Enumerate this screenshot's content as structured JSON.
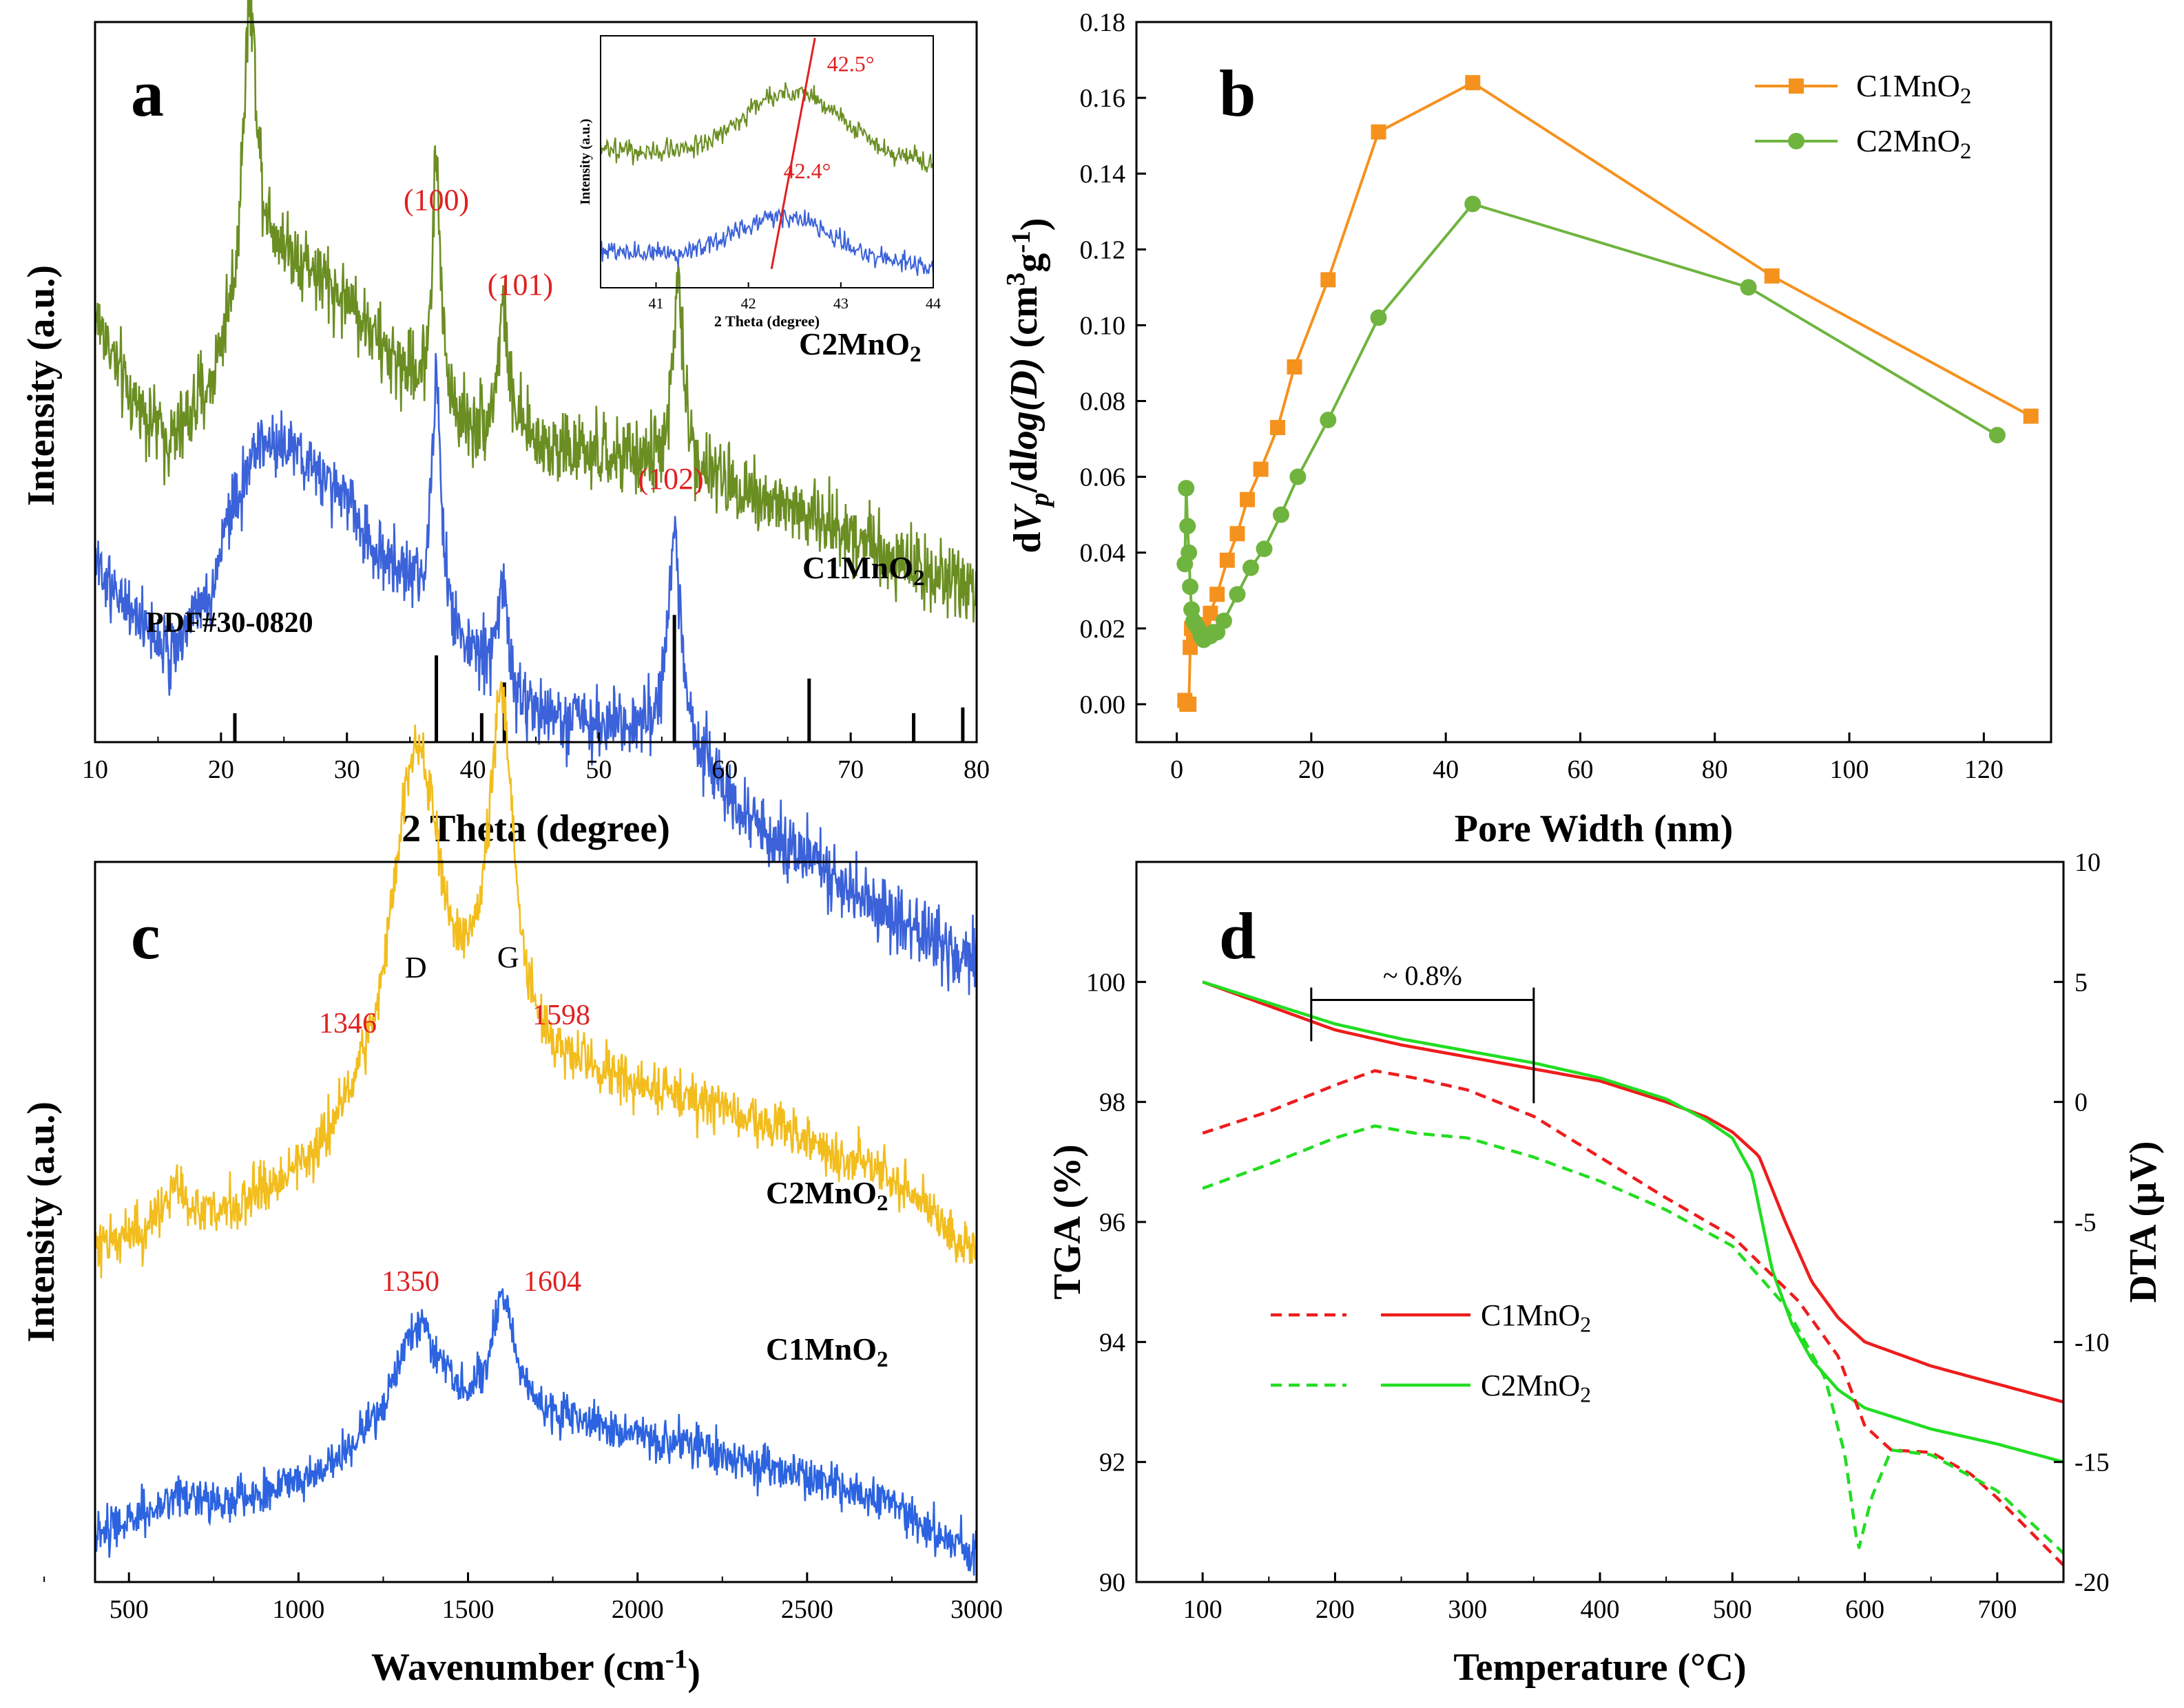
{
  "chart_data": [
    {
      "id": "a",
      "panel_label": "a",
      "type": "line",
      "xlabel": "2 Theta (degree)",
      "ylabel": "Intensity (a.u.)",
      "xlim": [
        10,
        80
      ],
      "xticks": [
        10,
        20,
        30,
        40,
        50,
        60,
        70,
        80
      ],
      "colors": {
        "C2MnO2": "#6b8e23",
        "C1MnO2": "#3b62d9",
        "annotation": "#e02020"
      },
      "series": [
        {
          "name": "C2MnO2",
          "label_main": "C2MnO",
          "label_sub": "2",
          "color": "#6b8e23",
          "offset": 0.82,
          "noise": 0.045,
          "baseline": [
            [
              10,
              0.73
            ],
            [
              13,
              0.63
            ],
            [
              16,
              0.58
            ],
            [
              19,
              0.64
            ],
            [
              21,
              0.74
            ],
            [
              22.3,
              0.92
            ],
            [
              23.5,
              0.83
            ],
            [
              26,
              0.8
            ],
            [
              30,
              0.75
            ],
            [
              34,
              0.67
            ],
            [
              38,
              0.61
            ],
            [
              40,
              0.59
            ],
            [
              44,
              0.58
            ],
            [
              50,
              0.56
            ],
            [
              56,
              0.55
            ],
            [
              60,
              0.53
            ],
            [
              65,
              0.5
            ],
            [
              70,
              0.47
            ],
            [
              75,
              0.43
            ],
            [
              80,
              0.4
            ]
          ],
          "peaks": [
            [
              22.3,
              0.2,
              0.6
            ],
            [
              37.1,
              0.3,
              0.4
            ],
            [
              42.4,
              0.16,
              0.5
            ],
            [
              56.3,
              0.22,
              0.5
            ]
          ]
        },
        {
          "name": "C1MnO2",
          "label_main": "C1MnO",
          "label_sub": "2",
          "color": "#3b62d9",
          "offset": 0.0,
          "noise": 0.04,
          "baseline": [
            [
              10,
              0.72
            ],
            [
              13,
              0.67
            ],
            [
              16,
              0.63
            ],
            [
              19,
              0.69
            ],
            [
              21,
              0.8
            ],
            [
              23,
              0.88
            ],
            [
              26,
              0.87
            ],
            [
              29,
              0.82
            ],
            [
              33,
              0.74
            ],
            [
              37,
              0.68
            ],
            [
              40,
              0.62
            ],
            [
              44,
              0.55
            ],
            [
              50,
              0.54
            ],
            [
              53,
              0.53
            ],
            [
              56,
              0.54
            ],
            [
              58,
              0.5
            ],
            [
              62,
              0.42
            ],
            [
              66,
              0.38
            ],
            [
              70,
              0.34
            ],
            [
              75,
              0.29
            ],
            [
              80,
              0.25
            ]
          ],
          "peaks": [
            [
              37.1,
              0.28,
              0.4
            ],
            [
              42.4,
              0.14,
              0.5
            ],
            [
              56.0,
              0.24,
              0.5
            ]
          ]
        }
      ],
      "reference": {
        "label": "PDF#30-0820",
        "positions": [
          21.1,
          37.1,
          40.7,
          42.5,
          56.0,
          66.7,
          75.0,
          78.9
        ],
        "heights": [
          0.15,
          0.45,
          0.15,
          0.31,
          0.66,
          0.33,
          0.15,
          0.18
        ]
      },
      "peak_labels": [
        {
          "text": "(100)",
          "x": 37.1
        },
        {
          "text": "(101)",
          "x": 42.4
        },
        {
          "text": "(102)",
          "x": 56.0
        }
      ],
      "inset": {
        "xlabel": "2 Theta (degree)",
        "ylabel": "Intensity (a.u.)",
        "xlim": [
          40.4,
          44
        ],
        "xticks": [
          41,
          42,
          43,
          44
        ],
        "series": [
          {
            "name": "C2MnO2",
            "color": "#6b8e23",
            "base": 0.55,
            "amp": 0.28,
            "center": 42.5
          },
          {
            "name": "C1MnO2",
            "color": "#3b62d9",
            "base": 0.12,
            "amp": 0.18,
            "center": 42.4
          }
        ],
        "annotations": [
          "42.5°",
          "42.4°"
        ]
      }
    },
    {
      "id": "b",
      "panel_label": "b",
      "type": "line",
      "xlabel": "Pore Width (nm)",
      "ylabel_parts": [
        "dV",
        "p",
        "/dlog(D) (cm",
        "3",
        "g",
        "-1",
        ")"
      ],
      "xlim": [
        -6,
        130
      ],
      "ylim": [
        -0.01,
        0.18
      ],
      "xticks": [
        0,
        20,
        40,
        60,
        80,
        100,
        120
      ],
      "yticks": [
        0.0,
        0.02,
        0.04,
        0.06,
        0.08,
        0.1,
        0.12,
        0.14,
        0.16,
        0.18
      ],
      "legend_position": "top-right",
      "series": [
        {
          "name": "C1MnO2",
          "label_main": "C1MnO",
          "label_sub": "2",
          "color": "#f5921e",
          "marker": "square",
          "x": [
            1.2,
            1.5,
            1.8,
            2.0,
            2.2,
            2.5,
            3.0,
            3.5,
            4.0,
            5.0,
            6.0,
            7.5,
            9.0,
            10.5,
            12.5,
            15.0,
            17.5,
            22.5,
            30.0,
            44.0,
            88.5,
            127.0
          ],
          "y": [
            0.001,
            0.0,
            0.0,
            0.015,
            0.02,
            0.018,
            0.02,
            0.019,
            0.021,
            0.024,
            0.029,
            0.038,
            0.045,
            0.054,
            0.062,
            0.073,
            0.089,
            0.112,
            0.151,
            0.164,
            0.113,
            0.076
          ]
        },
        {
          "name": "C2MnO2",
          "label_main": "C2MnO",
          "label_sub": "2",
          "color": "#6fb43f",
          "marker": "circle",
          "x": [
            1.2,
            1.4,
            1.6,
            1.8,
            2.0,
            2.2,
            2.5,
            2.8,
            3.2,
            3.6,
            4.0,
            4.5,
            5.0,
            5.5,
            6.0,
            7.0,
            9.0,
            11.0,
            13.0,
            15.5,
            18.0,
            22.5,
            30.0,
            44.0,
            85.0,
            122.0
          ],
          "y": [
            0.037,
            0.057,
            0.047,
            0.04,
            0.031,
            0.025,
            0.022,
            0.021,
            0.02,
            0.018,
            0.017,
            0.018,
            0.018,
            0.019,
            0.019,
            0.022,
            0.029,
            0.036,
            0.041,
            0.05,
            0.06,
            0.075,
            0.102,
            0.132,
            0.11,
            0.071
          ]
        }
      ]
    },
    {
      "id": "c",
      "panel_label": "c",
      "type": "line",
      "xlabel_main": "Wavenumber (cm",
      "xlabel_sup": "-1",
      "xlabel_end": ")",
      "ylabel": "Intensity (a.u.)",
      "xlim": [
        400,
        3000
      ],
      "xticks": [
        500,
        1000,
        1500,
        2000,
        2500,
        3000
      ],
      "band_labels": [
        {
          "text": "D",
          "x": 1346
        },
        {
          "text": "G",
          "x": 1598
        }
      ],
      "series": [
        {
          "name": "C2MnO2",
          "label_main": "C2MnO",
          "label_sub": "2",
          "color": "#f2bd1d",
          "offset": 0.36,
          "noise": 0.035,
          "baseline": [
            [
              400,
              0.07
            ],
            [
              600,
              0.1
            ],
            [
              800,
              0.12
            ],
            [
              1000,
              0.16
            ],
            [
              1200,
              0.22
            ],
            [
              1500,
              0.3
            ],
            [
              1800,
              0.31
            ],
            [
              2100,
              0.29
            ],
            [
              2400,
              0.24
            ],
            [
              2700,
              0.19
            ],
            [
              3000,
              0.07
            ]
          ],
          "peaks": [
            [
              1346,
              0.52,
              90
            ],
            [
              1598,
              0.51,
              45
            ],
            [
              640,
              0.06,
              25
            ]
          ],
          "peak_values": [
            "1346",
            "1598"
          ]
        },
        {
          "name": "C1MnO2",
          "label_main": "C1MnO",
          "label_sub": "2",
          "color": "#2c63e0",
          "offset": 0.0,
          "noise": 0.03,
          "baseline": [
            [
              400,
              0.03
            ],
            [
              600,
              0.06
            ],
            [
              800,
              0.07
            ],
            [
              1000,
              0.09
            ],
            [
              1200,
              0.13
            ],
            [
              1500,
              0.17
            ],
            [
              1800,
              0.18
            ],
            [
              2100,
              0.16
            ],
            [
              2400,
              0.12
            ],
            [
              2700,
              0.08
            ],
            [
              3000,
              0.0
            ]
          ],
          "peaks": [
            [
              1350,
              0.17,
              90
            ],
            [
              1604,
              0.17,
              45
            ],
            [
              640,
              0.03,
              25
            ]
          ],
          "peak_values": [
            "1350",
            "1604"
          ]
        }
      ]
    },
    {
      "id": "d",
      "panel_label": "d",
      "type": "line",
      "xlabel": "Temperature (°C)",
      "ylabel_left": "TGA (%)",
      "ylabel_right": "DTA (µV)",
      "xlim": [
        50,
        750
      ],
      "ylim_left": [
        90,
        102
      ],
      "ylim_right": [
        -20,
        10
      ],
      "xticks": [
        100,
        200,
        300,
        400,
        500,
        600,
        700
      ],
      "yticks_left": [
        90,
        92,
        94,
        96,
        98,
        100
      ],
      "yticks_right": [
        -20,
        -15,
        -10,
        -5,
        0,
        5,
        10
      ],
      "annotation": "~ 0.8%",
      "annotation_range": [
        182,
        350
      ],
      "annotation_level": 99.7,
      "legend_position": "lower-left",
      "series": [
        {
          "name": "C1MnO2 TGA",
          "label_main": "C1MnO",
          "label_sub": "2",
          "axis": "left",
          "style": "solid",
          "color": "#ee1c1c",
          "x": [
            100,
            150,
            200,
            250,
            300,
            350,
            400,
            450,
            480,
            500,
            520,
            540,
            560,
            580,
            600,
            650,
            700,
            750
          ],
          "y": [
            100.0,
            99.6,
            99.2,
            98.95,
            98.75,
            98.55,
            98.35,
            98.0,
            97.75,
            97.5,
            97.1,
            96.0,
            95.0,
            94.4,
            94.0,
            93.6,
            93.3,
            93.0
          ]
        },
        {
          "name": "C2MnO2 TGA",
          "label_main": "C2MnO",
          "label_sub": "2",
          "axis": "left",
          "style": "solid",
          "color": "#22dd22",
          "x": [
            100,
            150,
            200,
            250,
            300,
            350,
            400,
            450,
            480,
            500,
            515,
            530,
            545,
            560,
            580,
            600,
            650,
            700,
            750
          ],
          "y": [
            100.0,
            99.65,
            99.3,
            99.05,
            98.85,
            98.65,
            98.4,
            98.05,
            97.7,
            97.4,
            96.8,
            95.2,
            94.3,
            93.7,
            93.2,
            92.9,
            92.55,
            92.3,
            92.0
          ]
        },
        {
          "name": "C1MnO2 DTA",
          "axis": "right",
          "style": "dashed",
          "color": "#ee1c1c",
          "x": [
            100,
            150,
            200,
            230,
            260,
            300,
            350,
            400,
            450,
            500,
            550,
            580,
            600,
            620,
            650,
            680,
            700,
            750
          ],
          "y": [
            -1.3,
            -0.4,
            0.7,
            1.3,
            1.0,
            0.5,
            -0.6,
            -2.3,
            -4.0,
            -5.6,
            -8.3,
            -10.6,
            -13.5,
            -14.5,
            -14.6,
            -15.5,
            -16.5,
            -19.3
          ]
        },
        {
          "name": "C2MnO2 DTA",
          "axis": "right",
          "style": "dashed",
          "color": "#22dd22",
          "x": [
            100,
            150,
            200,
            230,
            260,
            300,
            350,
            400,
            450,
            500,
            540,
            570,
            585,
            595,
            605,
            620,
            650,
            700,
            750
          ],
          "y": [
            -3.6,
            -2.6,
            -1.5,
            -1.0,
            -1.3,
            -1.5,
            -2.3,
            -3.3,
            -4.5,
            -6.0,
            -8.5,
            -11.5,
            -14.7,
            -18.7,
            -16.5,
            -14.5,
            -14.7,
            -16.2,
            -18.8
          ]
        }
      ]
    }
  ]
}
